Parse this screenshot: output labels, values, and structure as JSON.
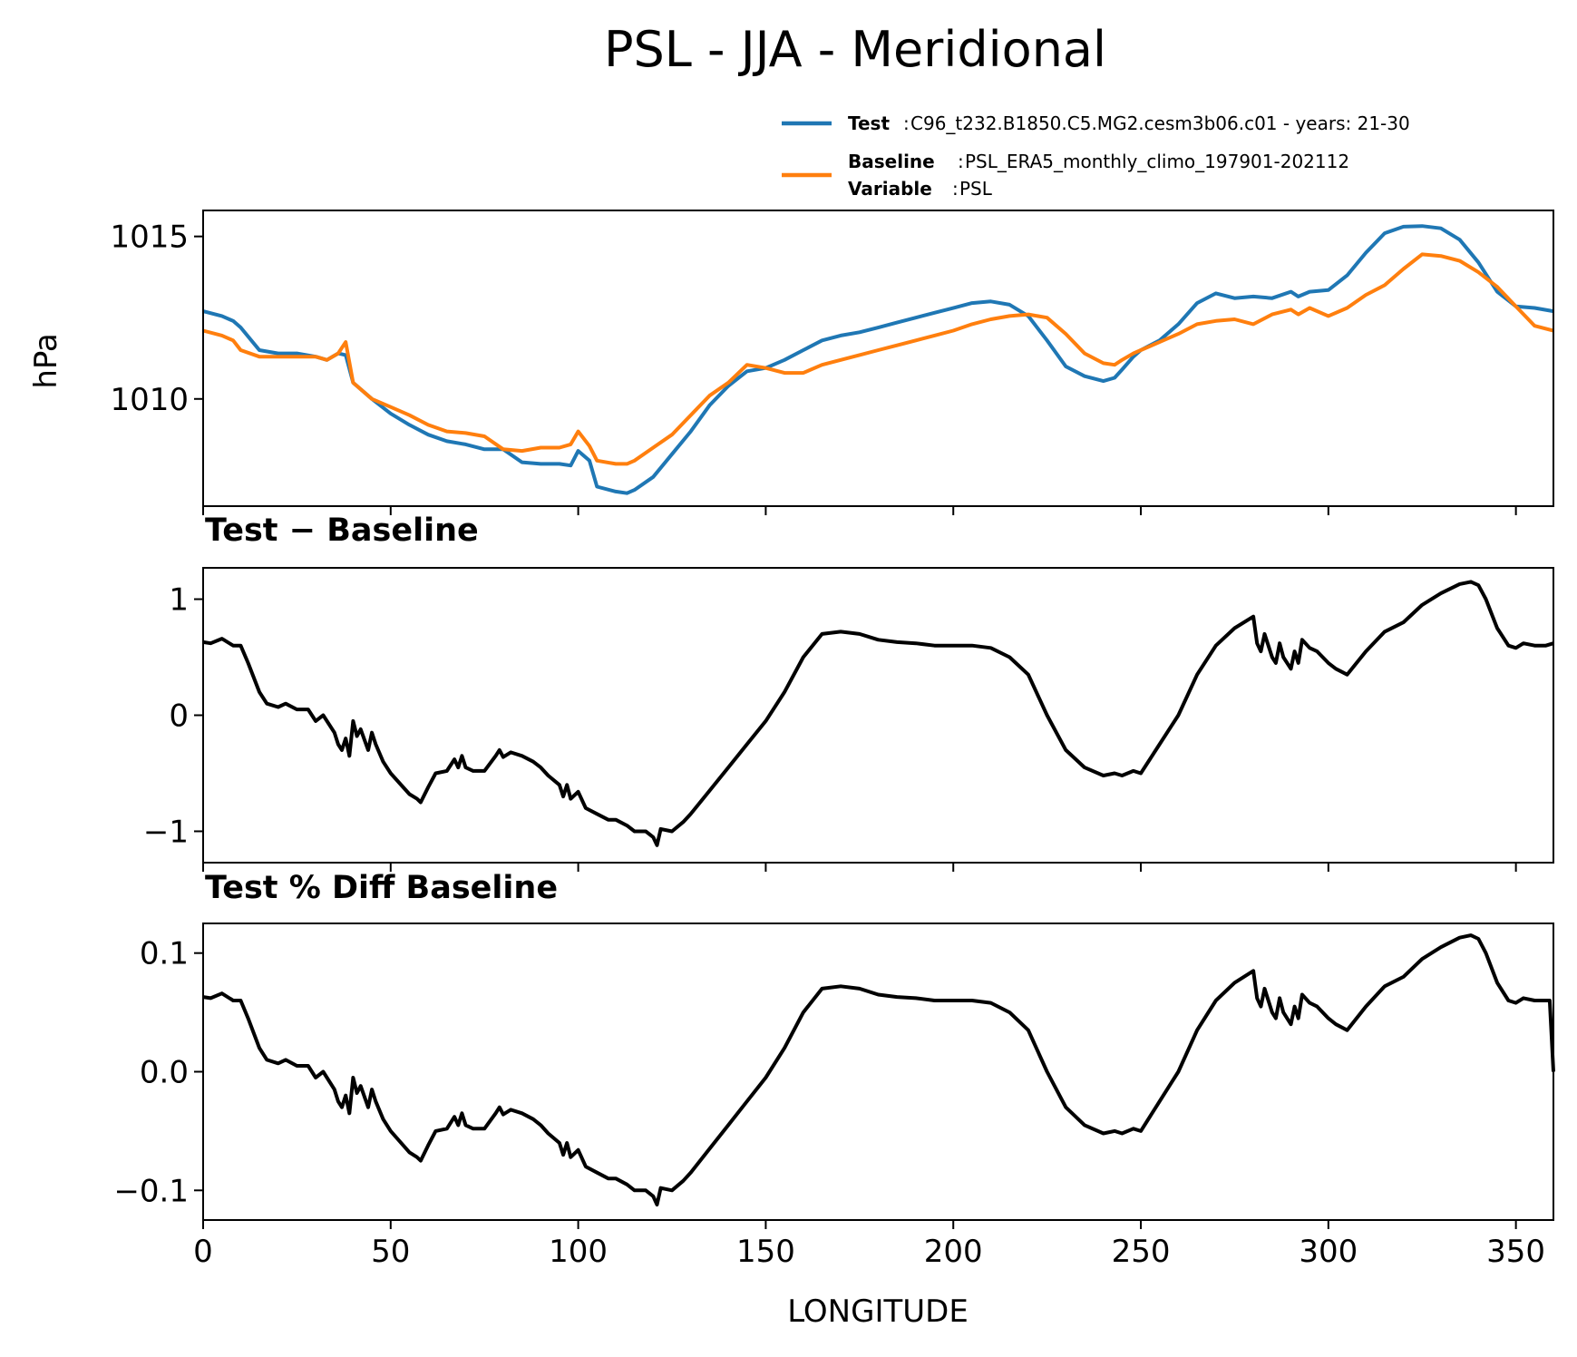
{
  "figure": {
    "title": "PSL - JJA - Meridional"
  },
  "legend": {
    "test_key": "Test",
    "test_text": "C96_t232.B1850.C5.MG2.cesm3b06.c01 - years: 21-30",
    "baseline_key": "Baseline",
    "baseline_text": "PSL_ERA5_monthly_climo_197901-202112",
    "variable_key": "Variable",
    "variable_text": "PSL"
  },
  "colors": {
    "test": "#1f77b4",
    "baseline": "#ff7f0e",
    "diff": "#000000"
  },
  "chart_data": [
    {
      "type": "line",
      "panel": "top",
      "title": "",
      "ylabel": "hPa",
      "xlabel": "",
      "xlim": [
        0,
        360
      ],
      "ylim": [
        1006.7,
        1015.8
      ],
      "yticks": [
        1010,
        1015
      ],
      "ytick_labels": [
        "1010",
        "1015"
      ],
      "xticks": [
        0,
        50,
        100,
        150,
        200,
        250,
        300,
        350
      ],
      "legend_position": "above-right",
      "series": [
        {
          "name": "Test",
          "color": "#1f77b4",
          "x": [
            0,
            5,
            8,
            10,
            15,
            20,
            25,
            30,
            33,
            36,
            38,
            40,
            45,
            50,
            55,
            60,
            65,
            70,
            75,
            80,
            85,
            90,
            95,
            98,
            100,
            103,
            105,
            110,
            113,
            115,
            120,
            125,
            130,
            135,
            140,
            145,
            150,
            155,
            160,
            165,
            170,
            175,
            180,
            185,
            190,
            195,
            200,
            205,
            210,
            215,
            220,
            225,
            230,
            235,
            240,
            243,
            245,
            248,
            250,
            255,
            260,
            265,
            270,
            275,
            280,
            285,
            290,
            292,
            295,
            300,
            305,
            310,
            315,
            320,
            325,
            330,
            335,
            340,
            345,
            350,
            355,
            360
          ],
          "y": [
            1012.7,
            1012.55,
            1012.4,
            1012.2,
            1011.5,
            1011.4,
            1011.4,
            1011.3,
            1011.2,
            1011.4,
            1011.35,
            1010.5,
            1010.0,
            1009.55,
            1009.2,
            1008.9,
            1008.7,
            1008.6,
            1008.45,
            1008.45,
            1008.05,
            1008.0,
            1008.0,
            1007.95,
            1008.4,
            1008.1,
            1007.3,
            1007.15,
            1007.1,
            1007.2,
            1007.6,
            1008.3,
            1009.0,
            1009.8,
            1010.4,
            1010.85,
            1010.95,
            1011.2,
            1011.5,
            1011.8,
            1011.95,
            1012.05,
            1012.2,
            1012.35,
            1012.5,
            1012.65,
            1012.8,
            1012.95,
            1013.0,
            1012.9,
            1012.55,
            1011.8,
            1011.0,
            1010.7,
            1010.55,
            1010.65,
            1010.9,
            1011.3,
            1011.5,
            1011.8,
            1012.3,
            1012.95,
            1013.25,
            1013.1,
            1013.15,
            1013.1,
            1013.3,
            1013.15,
            1013.3,
            1013.35,
            1013.8,
            1014.5,
            1015.1,
            1015.3,
            1015.32,
            1015.25,
            1014.9,
            1014.2,
            1013.3,
            1012.85,
            1012.8,
            1012.7
          ]
        },
        {
          "name": "Baseline",
          "color": "#ff7f0e",
          "x": [
            0,
            5,
            8,
            10,
            15,
            20,
            25,
            30,
            33,
            36,
            38,
            40,
            45,
            50,
            55,
            60,
            65,
            70,
            75,
            80,
            85,
            90,
            95,
            98,
            100,
            103,
            105,
            110,
            113,
            115,
            120,
            125,
            130,
            135,
            140,
            145,
            150,
            155,
            160,
            165,
            170,
            175,
            180,
            185,
            190,
            195,
            200,
            205,
            210,
            215,
            220,
            225,
            230,
            235,
            240,
            243,
            245,
            248,
            250,
            255,
            260,
            265,
            270,
            275,
            280,
            285,
            290,
            292,
            295,
            300,
            305,
            310,
            315,
            320,
            325,
            330,
            335,
            340,
            345,
            350,
            355,
            360
          ],
          "y": [
            1012.1,
            1011.95,
            1011.8,
            1011.5,
            1011.3,
            1011.3,
            1011.3,
            1011.3,
            1011.2,
            1011.4,
            1011.75,
            1010.5,
            1010.0,
            1009.75,
            1009.5,
            1009.2,
            1009.0,
            1008.95,
            1008.85,
            1008.45,
            1008.4,
            1008.5,
            1008.5,
            1008.6,
            1009.0,
            1008.55,
            1008.1,
            1008.0,
            1008.0,
            1008.1,
            1008.5,
            1008.9,
            1009.5,
            1010.1,
            1010.5,
            1011.05,
            1010.95,
            1010.8,
            1010.8,
            1011.05,
            1011.2,
            1011.35,
            1011.5,
            1011.65,
            1011.8,
            1011.95,
            1012.1,
            1012.3,
            1012.45,
            1012.55,
            1012.6,
            1012.5,
            1012.0,
            1011.4,
            1011.1,
            1011.05,
            1011.2,
            1011.4,
            1011.5,
            1011.75,
            1012.0,
            1012.3,
            1012.4,
            1012.45,
            1012.3,
            1012.6,
            1012.75,
            1012.6,
            1012.8,
            1012.55,
            1012.8,
            1013.2,
            1013.5,
            1014.0,
            1014.45,
            1014.4,
            1014.25,
            1013.9,
            1013.45,
            1012.85,
            1012.25,
            1012.1
          ]
        }
      ]
    },
    {
      "type": "line",
      "panel": "middle",
      "title": "Test − Baseline",
      "ylabel": "",
      "xlabel": "",
      "xlim": [
        0,
        360
      ],
      "ylim": [
        -1.27,
        1.27
      ],
      "yticks": [
        -1,
        0,
        1
      ],
      "ytick_labels": [
        "−1",
        "0",
        "1"
      ],
      "xticks": [
        0,
        50,
        100,
        150,
        200,
        250,
        300,
        350
      ],
      "series": [
        {
          "name": "",
          "color": "#000000",
          "x": [
            0,
            2,
            5,
            8,
            10,
            12,
            15,
            17,
            20,
            22,
            25,
            28,
            30,
            32,
            35,
            36,
            37,
            38,
            39,
            40,
            41,
            42,
            44,
            45,
            46,
            48,
            50,
            55,
            57,
            58,
            60,
            62,
            65,
            67,
            68,
            69,
            70,
            72,
            75,
            78,
            79,
            80,
            82,
            85,
            88,
            90,
            92,
            95,
            96,
            97,
            98,
            100,
            102,
            105,
            108,
            110,
            113,
            115,
            118,
            120,
            121,
            122,
            125,
            128,
            130,
            135,
            140,
            145,
            150,
            155,
            160,
            165,
            170,
            175,
            180,
            185,
            190,
            195,
            200,
            205,
            210,
            215,
            220,
            225,
            230,
            235,
            240,
            243,
            245,
            248,
            250,
            255,
            258,
            260,
            265,
            270,
            275,
            280,
            281,
            282,
            283,
            285,
            286,
            287,
            288,
            290,
            291,
            292,
            293,
            295,
            297,
            300,
            302,
            305,
            310,
            315,
            320,
            325,
            330,
            335,
            338,
            340,
            342,
            345,
            348,
            350,
            352,
            355,
            358,
            360
          ],
          "y": [
            0.63,
            0.62,
            0.66,
            0.6,
            0.6,
            0.45,
            0.2,
            0.1,
            0.07,
            0.1,
            0.05,
            0.05,
            -0.05,
            0.0,
            -0.15,
            -0.25,
            -0.3,
            -0.2,
            -0.35,
            -0.05,
            -0.18,
            -0.12,
            -0.3,
            -0.15,
            -0.25,
            -0.4,
            -0.5,
            -0.68,
            -0.72,
            -0.75,
            -0.62,
            -0.5,
            -0.48,
            -0.38,
            -0.45,
            -0.35,
            -0.45,
            -0.48,
            -0.48,
            -0.35,
            -0.3,
            -0.36,
            -0.32,
            -0.35,
            -0.4,
            -0.45,
            -0.52,
            -0.6,
            -0.7,
            -0.6,
            -0.72,
            -0.66,
            -0.8,
            -0.85,
            -0.9,
            -0.9,
            -0.95,
            -1.0,
            -1.0,
            -1.05,
            -1.12,
            -0.98,
            -1.0,
            -0.92,
            -0.85,
            -0.65,
            -0.45,
            -0.25,
            -0.05,
            0.2,
            0.5,
            0.7,
            0.72,
            0.7,
            0.65,
            0.63,
            0.62,
            0.6,
            0.6,
            0.6,
            0.58,
            0.5,
            0.35,
            0.0,
            -0.3,
            -0.45,
            -0.52,
            -0.5,
            -0.52,
            -0.48,
            -0.5,
            -0.25,
            -0.1,
            0.0,
            0.35,
            0.6,
            0.75,
            0.85,
            0.62,
            0.55,
            0.7,
            0.5,
            0.45,
            0.62,
            0.5,
            0.4,
            0.55,
            0.45,
            0.65,
            0.58,
            0.55,
            0.45,
            0.4,
            0.35,
            0.55,
            0.72,
            0.8,
            0.95,
            1.05,
            1.13,
            1.15,
            1.12,
            1.0,
            0.75,
            0.6,
            0.58,
            0.62,
            0.6,
            0.6,
            0.62
          ]
        }
      ]
    },
    {
      "type": "line",
      "panel": "bottom",
      "title": "Test % Diff Baseline",
      "ylabel": "",
      "xlabel": "LONGITUDE",
      "xlim": [
        0,
        360
      ],
      "ylim": [
        -0.125,
        0.125
      ],
      "yticks": [
        -0.1,
        0.0,
        0.1
      ],
      "ytick_labels": [
        "−0.1",
        "0.0",
        "0.1"
      ],
      "xticks": [
        0,
        50,
        100,
        150,
        200,
        250,
        300,
        350
      ],
      "xtick_labels": [
        "0",
        "50",
        "100",
        "150",
        "200",
        "250",
        "300",
        "350"
      ],
      "series": [
        {
          "name": "",
          "color": "#000000",
          "x": [
            0,
            2,
            5,
            8,
            10,
            12,
            15,
            17,
            20,
            22,
            25,
            28,
            30,
            32,
            35,
            36,
            37,
            38,
            39,
            40,
            41,
            42,
            44,
            45,
            46,
            48,
            50,
            55,
            57,
            58,
            60,
            62,
            65,
            67,
            68,
            69,
            70,
            72,
            75,
            78,
            79,
            80,
            82,
            85,
            88,
            90,
            92,
            95,
            96,
            97,
            98,
            100,
            102,
            105,
            108,
            110,
            113,
            115,
            118,
            120,
            121,
            122,
            125,
            128,
            130,
            135,
            140,
            145,
            150,
            155,
            160,
            165,
            170,
            175,
            180,
            185,
            190,
            195,
            200,
            205,
            210,
            215,
            220,
            225,
            230,
            235,
            240,
            243,
            245,
            248,
            250,
            255,
            258,
            260,
            265,
            270,
            275,
            280,
            281,
            282,
            283,
            285,
            286,
            287,
            288,
            290,
            291,
            292,
            293,
            295,
            297,
            300,
            302,
            305,
            310,
            315,
            320,
            325,
            330,
            335,
            338,
            340,
            342,
            345,
            348,
            350,
            352,
            355,
            358,
            359,
            360
          ],
          "y": [
            0.063,
            0.062,
            0.066,
            0.06,
            0.06,
            0.045,
            0.02,
            0.01,
            0.007,
            0.01,
            0.005,
            0.005,
            -0.005,
            0.0,
            -0.015,
            -0.025,
            -0.03,
            -0.02,
            -0.035,
            -0.005,
            -0.018,
            -0.012,
            -0.03,
            -0.015,
            -0.025,
            -0.04,
            -0.05,
            -0.068,
            -0.072,
            -0.075,
            -0.062,
            -0.05,
            -0.048,
            -0.038,
            -0.045,
            -0.035,
            -0.045,
            -0.048,
            -0.048,
            -0.035,
            -0.03,
            -0.036,
            -0.032,
            -0.035,
            -0.04,
            -0.045,
            -0.052,
            -0.06,
            -0.07,
            -0.06,
            -0.072,
            -0.066,
            -0.08,
            -0.085,
            -0.09,
            -0.09,
            -0.095,
            -0.1,
            -0.1,
            -0.105,
            -0.112,
            -0.098,
            -0.1,
            -0.092,
            -0.085,
            -0.065,
            -0.045,
            -0.025,
            -0.005,
            0.02,
            0.05,
            0.07,
            0.072,
            0.07,
            0.065,
            0.063,
            0.062,
            0.06,
            0.06,
            0.06,
            0.058,
            0.05,
            0.035,
            0.0,
            -0.03,
            -0.045,
            -0.052,
            -0.05,
            -0.052,
            -0.048,
            -0.05,
            -0.025,
            -0.01,
            0.0,
            0.035,
            0.06,
            0.075,
            0.085,
            0.062,
            0.055,
            0.07,
            0.05,
            0.045,
            0.062,
            0.05,
            0.04,
            0.055,
            0.045,
            0.065,
            0.058,
            0.055,
            0.045,
            0.04,
            0.035,
            0.055,
            0.072,
            0.08,
            0.095,
            0.105,
            0.113,
            0.115,
            0.112,
            0.1,
            0.075,
            0.06,
            0.058,
            0.062,
            0.06,
            0.06,
            0.06,
            0.0
          ]
        }
      ]
    }
  ]
}
